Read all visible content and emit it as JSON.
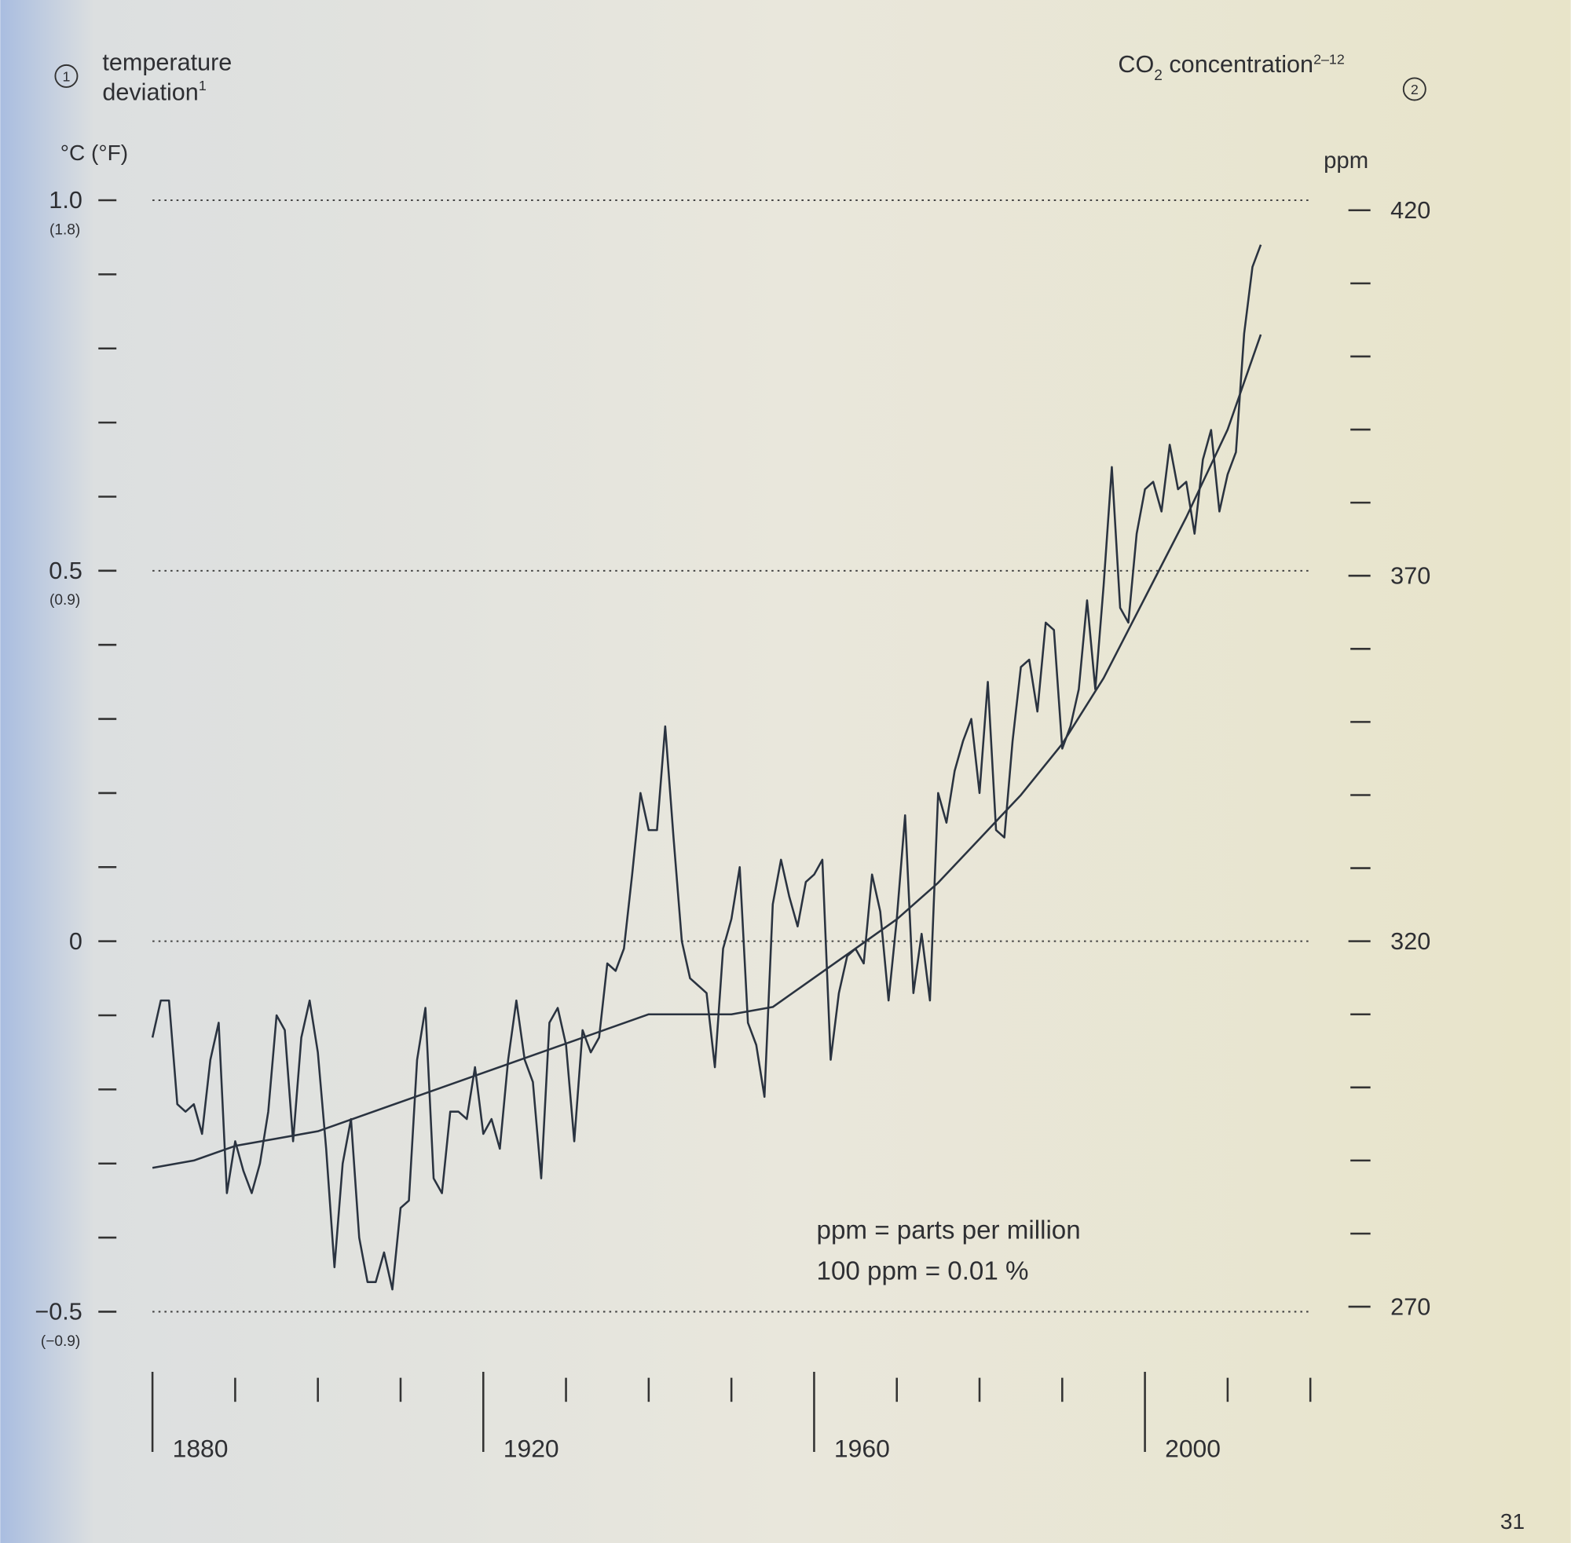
{
  "chart_data": {
    "type": "line",
    "y_marker": "1",
    "y_label_lines": [
      "temperature",
      "deviation"
    ],
    "y_label_sup": "1",
    "y_unit": "°C (°F)",
    "y2_label": "CO",
    "y2_label_sub": "2",
    "y2_label_rest": " concentration",
    "y2_label_sup": "2–12",
    "y2_marker": "2",
    "y2_unit": "ppm",
    "annotations": [
      "ppm = parts per million",
      "100 ppm = 0.01 %"
    ],
    "page_number": "31",
    "xlim": [
      1880,
      2020
    ],
    "xticks": [
      1880,
      1920,
      1960,
      2000
    ],
    "xminorticks": [
      1890,
      1900,
      1910,
      1930,
      1940,
      1950,
      1970,
      1980,
      1990,
      2010,
      2020
    ],
    "ylim": [
      -0.5,
      1.0
    ],
    "yticks": [
      {
        "value": 1.0,
        "label": "1.0"
      },
      0.5,
      0,
      {
        "value": -0.5,
        "label": "−0.5"
      }
    ],
    "y_f_labels": [
      {
        "value": 1.0,
        "label": "(1.8)"
      },
      {
        "value": 0.5,
        "label": "(0.9)"
      },
      {
        "value": -0.5,
        "label": "(−0.9)"
      }
    ],
    "yminorticks": [
      0.9,
      0.8,
      0.7,
      0.6,
      0.4,
      0.3,
      0.2,
      0.1,
      -0.1,
      -0.2,
      -0.3,
      -0.4
    ],
    "y2lim": [
      270,
      420
    ],
    "y2ticks": [
      270,
      320,
      370,
      420
    ],
    "y2minorticks": [
      410,
      400,
      390,
      380,
      360,
      350,
      340,
      330,
      310,
      300,
      290,
      280
    ],
    "grid": true,
    "series": [
      {
        "color": "#2a3340",
        "x": [
          1880,
          1881,
          1882,
          1883,
          1884,
          1885,
          1886,
          1887,
          1888,
          1889,
          1890,
          1891,
          1892,
          1893,
          1894,
          1895,
          1896,
          1897,
          1898,
          1899,
          1900,
          1901,
          1902,
          1903,
          1904,
          1905,
          1906,
          1907,
          1908,
          1909,
          1910,
          1911,
          1912,
          1913,
          1914,
          1915,
          1916,
          1917,
          1918,
          1919,
          1920,
          1921,
          1922,
          1923,
          1924,
          1925,
          1926,
          1927,
          1928,
          1929,
          1930,
          1931,
          1932,
          1933,
          1934,
          1935,
          1936,
          1937,
          1938,
          1939,
          1940,
          1941,
          1942,
          1943,
          1944,
          1945,
          1946,
          1947,
          1948,
          1949,
          1950,
          1951,
          1952,
          1953,
          1954,
          1955,
          1956,
          1957,
          1958,
          1959,
          1960,
          1961,
          1962,
          1963,
          1964,
          1965,
          1966,
          1967,
          1968,
          1969,
          1970,
          1971,
          1972,
          1973,
          1974,
          1975,
          1976,
          1977,
          1978,
          1979,
          1980,
          1981,
          1982,
          1983,
          1984,
          1985,
          1986,
          1987,
          1988,
          1989,
          1990,
          1991,
          1992,
          1993,
          1994,
          1995,
          1996,
          1997,
          1998,
          1999,
          2000,
          2001,
          2002,
          2003,
          2004,
          2005,
          2006,
          2007,
          2008,
          2009,
          2010,
          2011,
          2012,
          2013,
          2014
        ],
        "values": [
          -0.13,
          -0.08,
          -0.08,
          -0.22,
          -0.23,
          -0.22,
          -0.26,
          -0.16,
          -0.11,
          -0.34,
          -0.27,
          -0.31,
          -0.34,
          -0.3,
          -0.23,
          -0.1,
          -0.12,
          -0.27,
          -0.13,
          -0.08,
          -0.15,
          -0.28,
          -0.44,
          -0.3,
          -0.24,
          -0.4,
          -0.46,
          -0.46,
          -0.42,
          -0.47,
          -0.36,
          -0.35,
          -0.16,
          -0.09,
          -0.32,
          -0.34,
          -0.23,
          -0.23,
          -0.24,
          -0.17,
          -0.26,
          -0.24,
          -0.28,
          -0.16,
          -0.08,
          -0.16,
          -0.19,
          -0.32,
          -0.11,
          -0.09,
          -0.14,
          -0.27,
          -0.12,
          -0.15,
          -0.13,
          -0.03,
          -0.04,
          -0.01,
          0.09,
          0.2,
          0.15,
          0.15,
          0.29,
          0.14,
          0.0,
          -0.05,
          -0.06,
          -0.07,
          -0.17,
          -0.01,
          0.03,
          0.1,
          -0.11,
          -0.14,
          -0.21,
          0.05,
          0.11,
          0.06,
          0.02,
          0.08,
          0.09,
          0.11,
          -0.16,
          -0.07,
          -0.02,
          -0.01,
          -0.03,
          0.09,
          0.04,
          -0.08,
          0.03,
          0.17,
          -0.07,
          0.01,
          -0.08,
          0.2,
          0.16,
          0.23,
          0.27,
          0.3,
          0.2,
          0.35,
          0.15,
          0.14,
          0.27,
          0.37,
          0.38,
          0.31,
          0.43,
          0.42,
          0.26,
          0.29,
          0.34,
          0.46,
          0.34,
          0.48,
          0.64,
          0.45,
          0.43,
          0.55,
          0.61,
          0.62,
          0.58,
          0.67,
          0.61,
          0.62,
          0.55,
          0.65,
          0.69,
          0.58,
          0.63,
          0.66,
          0.82,
          0.91,
          0.94
        ]
      },
      {
        "color": "#2a3340",
        "axis": "y2",
        "x": [
          1880,
          1885,
          1890,
          1895,
          1900,
          1905,
          1910,
          1915,
          1920,
          1925,
          1930,
          1935,
          1940,
          1945,
          1950,
          1955,
          1960,
          1965,
          1970,
          1975,
          1980,
          1985,
          1990,
          1995,
          2000,
          2005,
          2010,
          2014
        ],
        "values": [
          289,
          290,
          292,
          293,
          294,
          296,
          298,
          300,
          302,
          304,
          306,
          308,
          310,
          310,
          310,
          311,
          315,
          319,
          323,
          328,
          334,
          340,
          347,
          356,
          367,
          378,
          390,
          403
        ]
      }
    ]
  }
}
